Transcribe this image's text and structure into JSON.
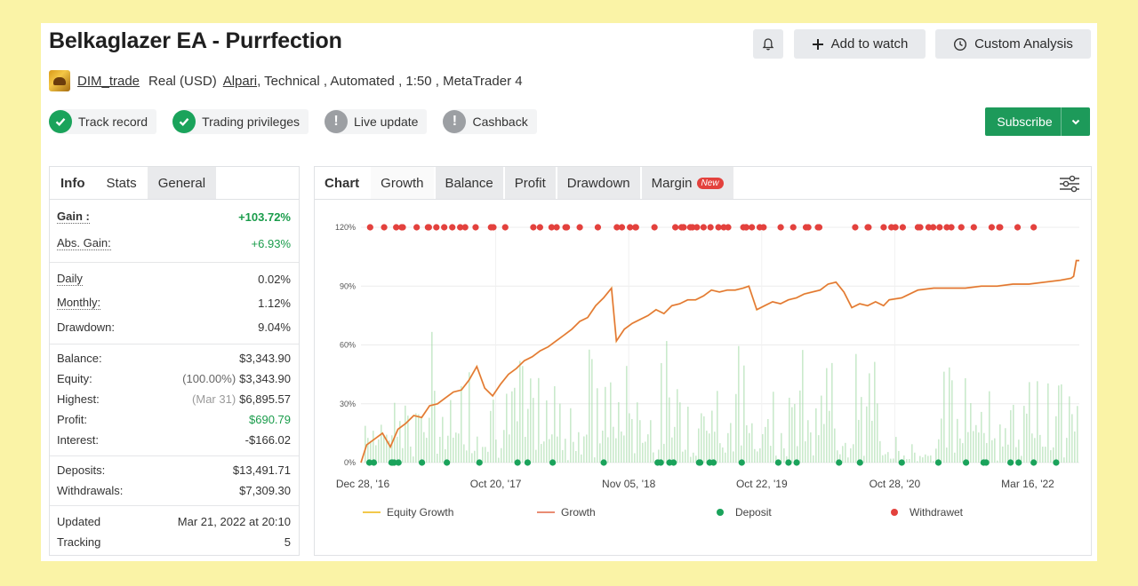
{
  "title": "Belkaglazer EA - Purrfection",
  "header_buttons": {
    "add_watch": "Add to watch",
    "custom_analysis": "Custom Analysis"
  },
  "meta": {
    "user": "DIM_trade",
    "account_type": "Real (USD)",
    "broker": "Alpari",
    "details": ", Technical , Automated , 1:50 , MetaTrader 4"
  },
  "badges": [
    {
      "label": "Track record",
      "status": "ok",
      "icon": "check-icon"
    },
    {
      "label": "Trading privileges",
      "status": "ok",
      "icon": "check-icon"
    },
    {
      "label": "Live update",
      "status": "warn",
      "icon": "exclamation-icon"
    },
    {
      "label": "Cashback",
      "status": "warn",
      "icon": "exclamation-icon"
    }
  ],
  "subscribe_label": "Subscribe",
  "info_tabs": [
    "Info",
    "Stats",
    "General"
  ],
  "info": {
    "gain": {
      "label": "Gain :",
      "value": "+103.72%"
    },
    "abs_gain": {
      "label": "Abs. Gain:",
      "value": "+6.93%"
    },
    "daily": {
      "label": "Daily",
      "value": "0.02%"
    },
    "monthly": {
      "label": "Monthly:",
      "value": "1.12%"
    },
    "drawdown": {
      "label": "Drawdown:",
      "value": "9.04%"
    },
    "balance": {
      "label": "Balance:",
      "value": "$3,343.90"
    },
    "equity": {
      "label": "Equity:",
      "note": "(100.00%)",
      "value": "$3,343.90"
    },
    "highest": {
      "label": "Highest:",
      "note": "(Mar 31)",
      "value": "$6,895.57"
    },
    "profit": {
      "label": "Profit:",
      "value": "$690.79"
    },
    "interest": {
      "label": "Interest:",
      "value": "-$166.02"
    },
    "deposits": {
      "label": "Deposits:",
      "value": "$13,491.71"
    },
    "withdrawals": {
      "label": "Withdrawals:",
      "value": "$7,309.30"
    },
    "updated": {
      "label": "Updated",
      "value": "Mar 21, 2022 at 20:10"
    },
    "tracking": {
      "label": "Tracking",
      "value": "5"
    }
  },
  "chart_tabs": {
    "chart": "Chart",
    "growth": "Growth",
    "balance": "Balance",
    "profit": "Profit",
    "drawdown": "Drawdown",
    "margin": "Margin",
    "new_badge": "New"
  },
  "legend": {
    "equity": "Equity Growth",
    "growth": "Growth",
    "deposit": "Deposit",
    "withdrawal": "Withdrawet"
  },
  "colors": {
    "growth": "#e2703a",
    "equity": "#f2c84b",
    "deposit": "#1aa35b",
    "withdrawal": "#e3413d",
    "volume": "#9fd8a2",
    "brand_green": "#1d9a5a"
  },
  "chart_data": {
    "type": "line",
    "x_tick_labels": [
      "Dec 28, '16",
      "Oct 20, '17",
      "Nov 05, '18",
      "Oct 22, '19",
      "Oct 28, '20",
      "Mar 16, '22"
    ],
    "y_tick_labels": [
      "0%",
      "30%",
      "60%",
      "90%",
      "120%"
    ],
    "ylim": [
      0,
      120
    ],
    "x_range": [
      "2016-12-28",
      "2022-03-16"
    ],
    "series": [
      {
        "name": "Growth",
        "x": [
          "2016-12-28",
          "2017-01-12",
          "2017-02-02",
          "2017-02-23",
          "2017-03-16",
          "2017-04-05",
          "2017-04-26",
          "2017-05-17",
          "2017-06-07",
          "2017-06-28",
          "2017-07-19",
          "2017-08-09",
          "2017-08-30",
          "2017-09-20",
          "2017-10-10",
          "2017-10-31",
          "2017-11-21",
          "2017-12-12",
          "2018-01-02",
          "2018-01-23",
          "2018-02-13",
          "2018-03-06",
          "2018-03-27",
          "2018-04-17",
          "2018-05-08",
          "2018-05-29",
          "2018-06-19",
          "2018-07-10",
          "2018-07-31",
          "2018-08-21",
          "2018-09-11",
          "2018-10-02",
          "2018-10-23",
          "2018-11-05",
          "2018-11-26",
          "2018-12-17",
          "2019-01-07",
          "2019-01-28",
          "2019-02-18",
          "2019-03-11",
          "2019-04-01",
          "2019-04-22",
          "2019-05-13",
          "2019-06-03",
          "2019-06-24",
          "2019-07-15",
          "2019-08-05",
          "2019-08-26",
          "2019-09-16",
          "2019-10-07",
          "2019-10-22",
          "2019-11-12",
          "2019-12-03",
          "2019-12-24",
          "2020-01-14",
          "2020-02-04",
          "2020-02-25",
          "2020-03-17",
          "2020-04-07",
          "2020-04-28",
          "2020-05-19",
          "2020-06-09",
          "2020-06-30",
          "2020-07-21",
          "2020-08-11",
          "2020-09-01",
          "2020-09-22",
          "2020-10-13",
          "2020-10-28",
          "2020-11-30",
          "2021-01-12",
          "2021-02-23",
          "2021-04-06",
          "2021-05-18",
          "2021-06-29",
          "2021-08-10",
          "2021-09-21",
          "2021-11-02",
          "2021-12-14",
          "2022-01-25",
          "2022-02-22",
          "2022-03-01",
          "2022-03-08",
          "2022-03-16"
        ],
        "y": [
          0,
          9,
          12,
          15,
          8,
          17,
          20,
          24,
          23,
          29,
          30,
          33,
          36,
          37,
          42,
          49,
          38,
          34,
          40,
          45,
          48,
          52,
          54,
          57,
          59,
          62,
          65,
          68,
          72,
          74,
          80,
          84,
          89,
          62,
          68,
          71,
          73,
          75,
          78,
          76,
          80,
          81,
          83,
          83,
          85,
          88,
          87,
          88,
          88,
          89,
          90,
          78,
          80,
          82,
          81,
          83,
          84,
          86,
          87,
          88,
          91,
          92,
          87,
          79,
          81,
          80,
          82,
          80,
          83,
          84,
          88,
          89,
          89,
          89,
          90,
          90,
          91,
          91,
          92,
          93,
          94,
          95,
          103,
          103
        ]
      }
    ],
    "deposits_count": 36,
    "withdrawals_count": 76
  }
}
